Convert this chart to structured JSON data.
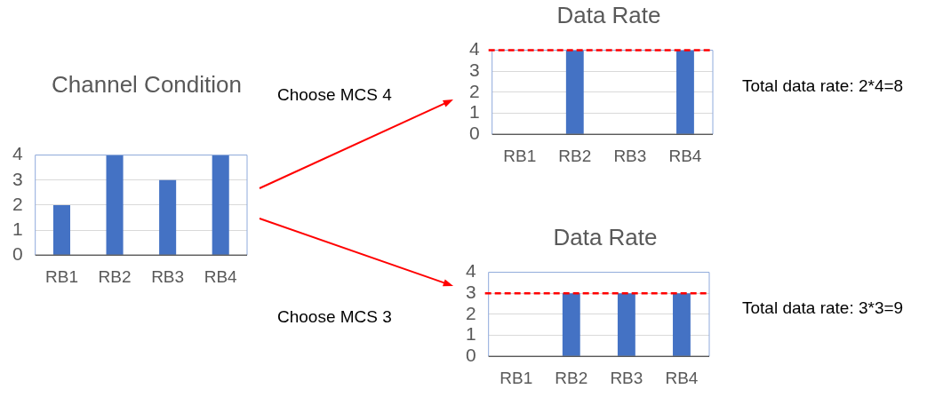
{
  "chart_data": [
    {
      "type": "bar",
      "title": "Channel Condition",
      "categories": [
        "RB1",
        "RB2",
        "RB3",
        "RB4"
      ],
      "values": [
        2,
        4,
        3,
        4
      ],
      "color": "#4472c4",
      "ylim": [
        0,
        4
      ],
      "yticks": [
        0,
        1,
        2,
        3,
        4
      ],
      "grid": "y"
    },
    {
      "type": "bar",
      "title": "Data Rate",
      "categories": [
        "RB1",
        "RB2",
        "RB3",
        "RB4"
      ],
      "values": [
        0,
        4,
        0,
        4
      ],
      "color": "#4472c4",
      "ylim": [
        0,
        4
      ],
      "yticks": [
        0,
        1,
        2,
        3,
        4
      ],
      "grid": "y",
      "ref_lines": [
        {
          "axis": "y",
          "value": 4,
          "color": "#ff0000",
          "line_style": "dashed"
        }
      ],
      "annotations": [
        "Choose MCS 4",
        "Total data rate: 2*4=8"
      ]
    },
    {
      "type": "bar",
      "title": "Data Rate",
      "categories": [
        "RB1",
        "RB2",
        "RB3",
        "RB4"
      ],
      "values": [
        0,
        3,
        3,
        3
      ],
      "color": "#4472c4",
      "ylim": [
        0,
        4
      ],
      "yticks": [
        0,
        1,
        2,
        3,
        4
      ],
      "grid": "y",
      "ref_lines": [
        {
          "axis": "y",
          "value": 3,
          "color": "#ff0000",
          "line_style": "dashed"
        }
      ],
      "annotations": [
        "Choose MCS 3",
        "Total data rate: 3*3=9"
      ]
    }
  ]
}
